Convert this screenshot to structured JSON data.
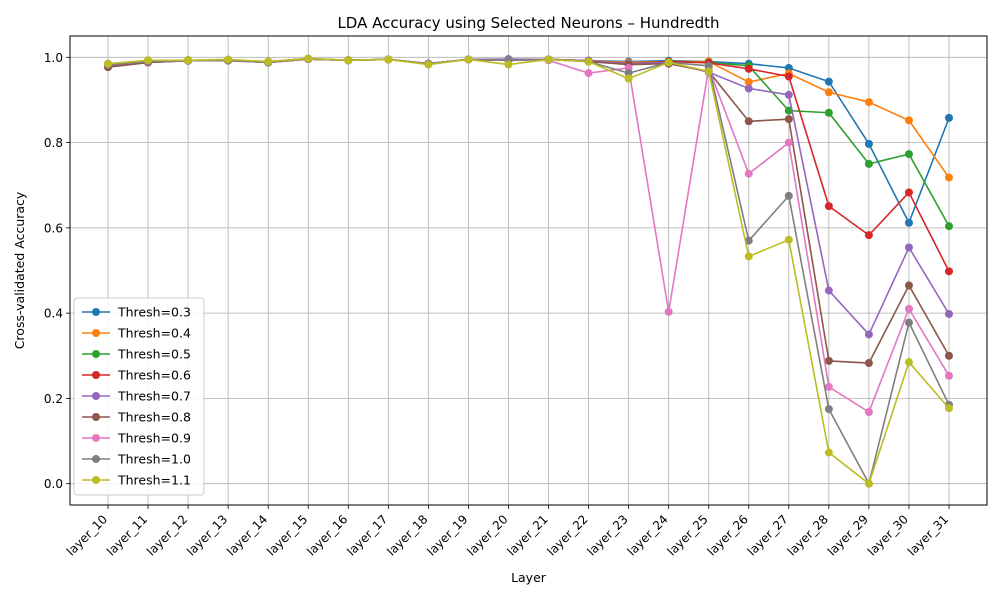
{
  "chart_data": {
    "type": "line",
    "title": "LDA Accuracy using Selected Neurons – Hundredth",
    "xlabel": "Layer",
    "ylabel": "Cross-validated Accuracy",
    "ylim": [
      -0.05,
      1.05
    ],
    "yticks": [
      "0.0",
      "0.2",
      "0.4",
      "0.6",
      "0.8",
      "1.0"
    ],
    "ytick_values": [
      0.0,
      0.2,
      0.4,
      0.6,
      0.8,
      1.0
    ],
    "grid": true,
    "legend_position": "lower-left",
    "categories": [
      "layer_10",
      "layer_11",
      "layer_12",
      "layer_13",
      "layer_14",
      "layer_15",
      "layer_16",
      "layer_17",
      "layer_18",
      "layer_19",
      "layer_20",
      "layer_21",
      "layer_22",
      "layer_23",
      "layer_24",
      "layer_25",
      "layer_26",
      "layer_27",
      "layer_28",
      "layer_29",
      "layer_30",
      "layer_31"
    ],
    "series": [
      {
        "name": "Thresh=0.3",
        "color": "#1f77b4",
        "values": [
          0.985,
          0.99,
          0.993,
          0.993,
          0.99,
          0.997,
          0.993,
          0.995,
          0.985,
          0.995,
          0.995,
          0.995,
          0.992,
          0.99,
          0.992,
          0.99,
          0.985,
          0.975,
          0.943,
          0.797,
          0.612,
          0.858
        ]
      },
      {
        "name": "Thresh=0.4",
        "color": "#ff7f0e",
        "values": [
          0.983,
          0.99,
          0.993,
          0.994,
          0.99,
          0.997,
          0.993,
          0.995,
          0.985,
          0.995,
          0.993,
          0.995,
          0.992,
          0.988,
          0.99,
          0.99,
          0.942,
          0.962,
          0.918,
          0.895,
          0.852,
          0.718
        ]
      },
      {
        "name": "Thresh=0.5",
        "color": "#2ca02c",
        "values": [
          0.982,
          0.99,
          0.993,
          0.993,
          0.989,
          0.996,
          0.993,
          0.995,
          0.985,
          0.995,
          0.993,
          0.995,
          0.992,
          0.985,
          0.99,
          0.988,
          0.98,
          0.875,
          0.87,
          0.75,
          0.773,
          0.604
        ]
      },
      {
        "name": "Thresh=0.6",
        "color": "#d62728",
        "values": [
          0.978,
          0.988,
          0.992,
          0.993,
          0.988,
          0.996,
          0.993,
          0.995,
          0.985,
          0.995,
          0.993,
          0.995,
          0.992,
          0.985,
          0.99,
          0.987,
          0.973,
          0.955,
          0.651,
          0.583,
          0.683,
          0.498
        ]
      },
      {
        "name": "Thresh=0.7",
        "color": "#9467bd",
        "values": [
          0.977,
          0.988,
          0.992,
          0.993,
          0.988,
          0.996,
          0.993,
          0.995,
          0.985,
          0.995,
          0.996,
          0.995,
          0.992,
          0.985,
          0.988,
          0.965,
          0.927,
          0.912,
          0.453,
          0.35,
          0.554,
          0.398
        ]
      },
      {
        "name": "Thresh=0.8",
        "color": "#8c564b",
        "values": [
          0.977,
          0.988,
          0.992,
          0.992,
          0.988,
          0.996,
          0.993,
          0.995,
          0.985,
          0.995,
          0.993,
          0.995,
          0.99,
          0.983,
          0.985,
          0.967,
          0.85,
          0.855,
          0.288,
          0.283,
          0.465,
          0.3
        ]
      },
      {
        "name": "Thresh=0.9",
        "color": "#e377c2",
        "values": [
          0.983,
          0.99,
          0.992,
          0.993,
          0.988,
          0.996,
          0.993,
          0.995,
          0.985,
          0.995,
          0.993,
          0.993,
          0.963,
          0.975,
          0.403,
          0.975,
          0.727,
          0.8,
          0.227,
          0.168,
          0.41,
          0.253
        ]
      },
      {
        "name": "Thresh=1.0",
        "color": "#7f7f7f",
        "values": [
          0.983,
          0.99,
          0.992,
          0.993,
          0.988,
          0.996,
          0.993,
          0.995,
          0.985,
          0.995,
          0.993,
          0.995,
          0.99,
          0.963,
          0.988,
          0.98,
          0.57,
          0.675,
          0.175,
          0.0,
          0.378,
          0.185
        ]
      },
      {
        "name": "Thresh=1.1",
        "color": "#bcbd22",
        "values": [
          0.985,
          0.993,
          0.993,
          0.995,
          0.99,
          0.997,
          0.993,
          0.995,
          0.983,
          0.995,
          0.983,
          0.995,
          0.99,
          0.95,
          0.988,
          0.967,
          0.533,
          0.572,
          0.073,
          0.0,
          0.285,
          0.177
        ]
      }
    ]
  }
}
